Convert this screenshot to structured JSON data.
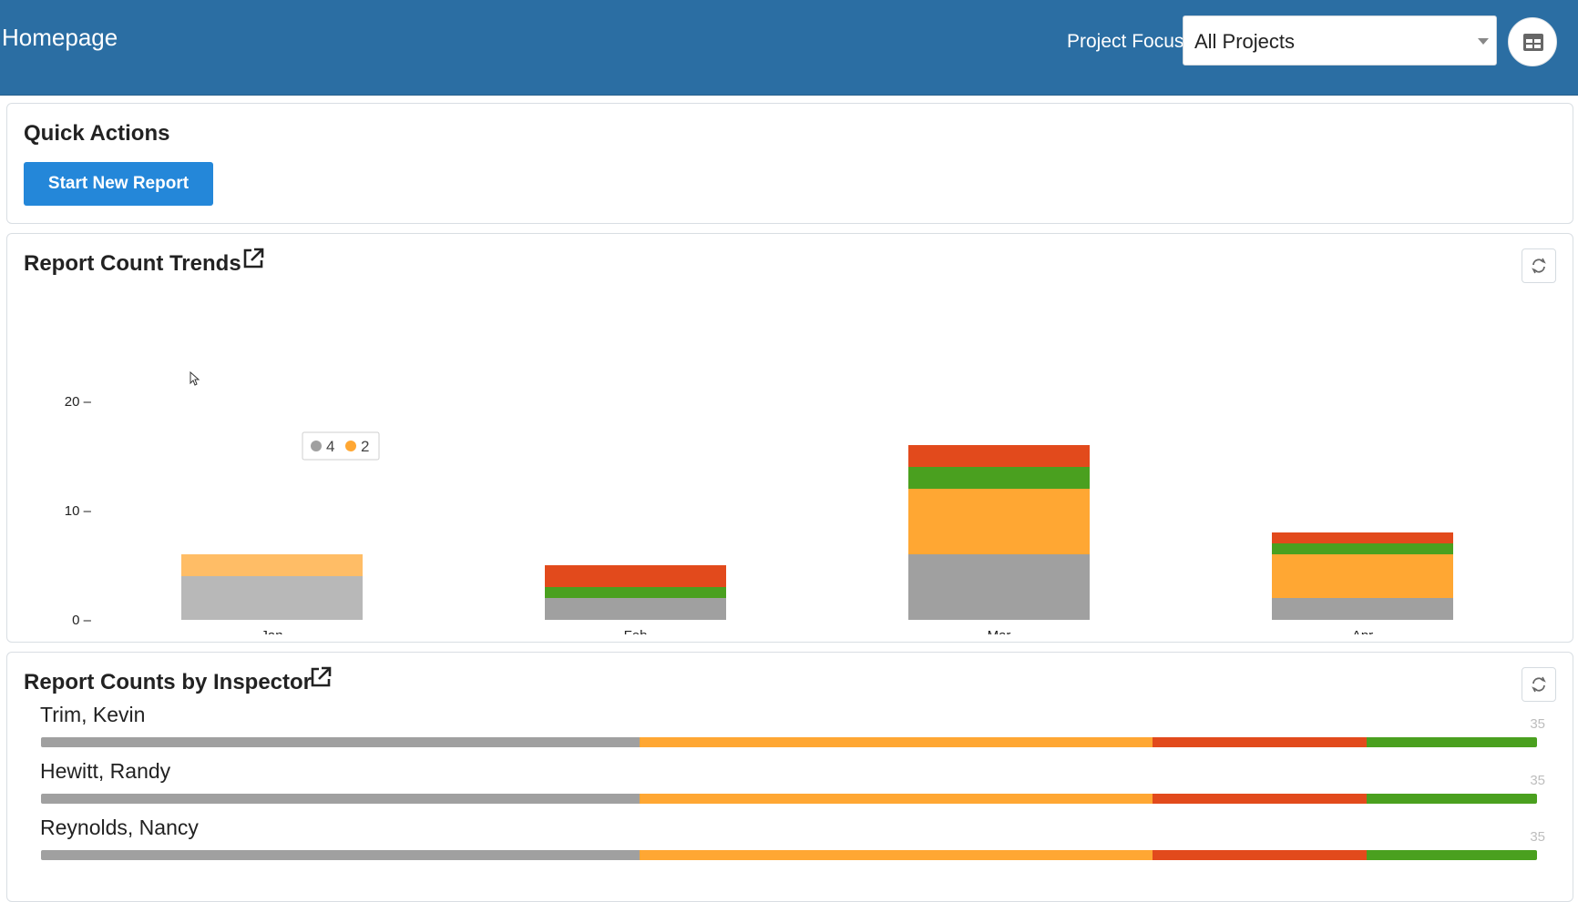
{
  "header": {
    "title": "Homepage",
    "project_focus_label": "Project Focus:",
    "project_focus_value": "All Projects",
    "view_toggle_icon": "table-layout-icon"
  },
  "quick_actions": {
    "title": "Quick Actions",
    "start_report_label": "Start New Report"
  },
  "trends": {
    "title": "Report Count Trends",
    "external_icon": "external-link-icon",
    "refresh_icon": "refresh-icon",
    "tooltip": [
      {
        "value": "4",
        "color": "#a0a0a0"
      },
      {
        "value": "2",
        "color": "#ffa733"
      }
    ]
  },
  "chart_data": {
    "type": "bar",
    "stacked": true,
    "categories": [
      "Jan",
      "Feb",
      "Mar",
      "Apr"
    ],
    "y_ticks": [
      "20 –",
      "10 –",
      "0 –"
    ],
    "ylim": [
      0,
      20
    ],
    "series": [
      {
        "color": "#a0a0a0",
        "values": [
          4,
          2,
          6,
          2
        ]
      },
      {
        "color": "#ffa733",
        "values": [
          2,
          0,
          6,
          4
        ]
      },
      {
        "color": "#4aa01f",
        "values": [
          0,
          1,
          2,
          1
        ]
      },
      {
        "color": "#e24a1c",
        "values": [
          0,
          2,
          2,
          1
        ]
      }
    ],
    "highlighted_category": "Jan"
  },
  "inspectors": {
    "title": "Report Counts by Inspector",
    "external_icon": "external-link-icon",
    "refresh_icon": "refresh-icon",
    "rows": [
      {
        "name": "Trim, Kevin",
        "total": "35",
        "segments": [
          {
            "color": "#a0a0a0",
            "fraction": 0.4
          },
          {
            "color": "#ffa733",
            "fraction": 0.343
          },
          {
            "color": "#e24a1c",
            "fraction": 0.143
          },
          {
            "color": "#4aa01f",
            "fraction": 0.114
          }
        ]
      },
      {
        "name": "Hewitt, Randy",
        "total": "35",
        "segments": [
          {
            "color": "#a0a0a0",
            "fraction": 0.4
          },
          {
            "color": "#ffa733",
            "fraction": 0.343
          },
          {
            "color": "#e24a1c",
            "fraction": 0.143
          },
          {
            "color": "#4aa01f",
            "fraction": 0.114
          }
        ]
      },
      {
        "name": "Reynolds, Nancy",
        "total": "35",
        "segments": [
          {
            "color": "#a0a0a0",
            "fraction": 0.4
          },
          {
            "color": "#ffa733",
            "fraction": 0.343
          },
          {
            "color": "#e24a1c",
            "fraction": 0.143
          },
          {
            "color": "#4aa01f",
            "fraction": 0.114
          }
        ]
      }
    ]
  }
}
